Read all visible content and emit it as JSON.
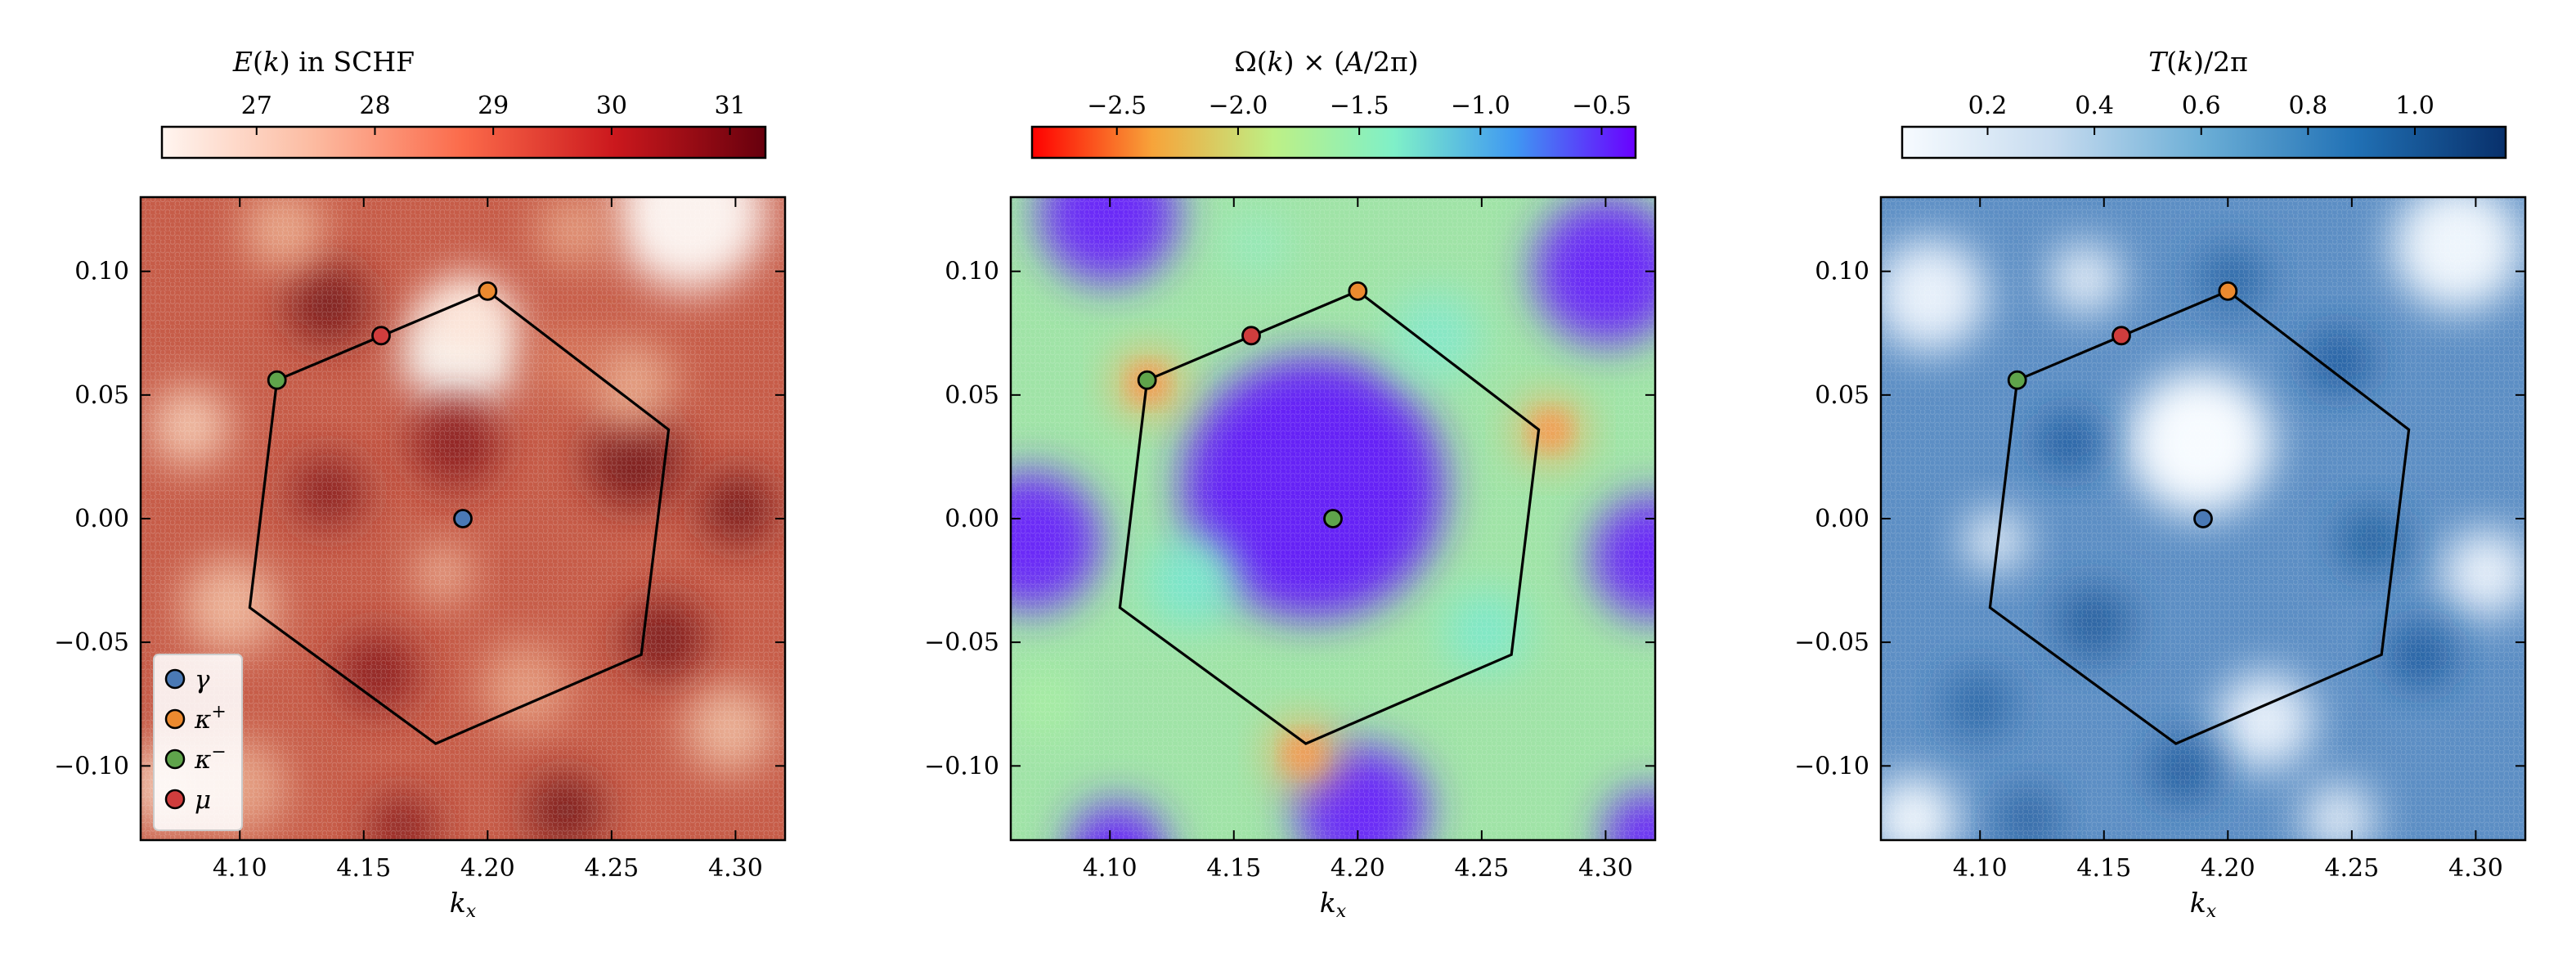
{
  "chart_data": [
    {
      "type": "heatmap",
      "title": "E(k) in SCHF",
      "colormap": "Reds",
      "colorbar_ticks": [
        27,
        28,
        29,
        30,
        31
      ],
      "colorbar_range": [
        26.2,
        31.3
      ],
      "xlabel": "k_x",
      "xlim": [
        4.06,
        4.32
      ],
      "ylim": [
        -0.13,
        0.13
      ],
      "xticks": [
        4.1,
        4.15,
        4.2,
        4.25,
        4.3
      ],
      "yticks": [
        -0.1,
        -0.05,
        0.0,
        0.05,
        0.1
      ],
      "xtick_labels": [
        "4.10",
        "4.15",
        "4.20",
        "4.25",
        "4.30"
      ],
      "ytick_labels": [
        "−0.10",
        "−0.05",
        "0.00",
        "0.05",
        "0.10"
      ],
      "legend": true
    },
    {
      "type": "heatmap",
      "title": "Ω(k) × (A/2π)",
      "colormap": "rainbow_r",
      "colorbar_ticks": [
        -2.5,
        -2.0,
        -1.5,
        -1.0,
        -0.5
      ],
      "colorbar_tick_labels": [
        "−2.5",
        "−2.0",
        "−1.5",
        "−1.0",
        "−0.5"
      ],
      "colorbar_range": [
        -2.85,
        -0.36
      ],
      "xlabel": "k_x",
      "xlim": [
        4.06,
        4.32
      ],
      "ylim": [
        -0.13,
        0.13
      ],
      "xticks": [
        4.1,
        4.15,
        4.2,
        4.25,
        4.3
      ],
      "yticks": [
        -0.1,
        -0.05,
        0.0,
        0.05,
        0.1
      ],
      "xtick_labels": [
        "4.10",
        "4.15",
        "4.20",
        "4.25",
        "4.30"
      ],
      "ytick_labels": [
        "−0.10",
        "−0.05",
        "0.00",
        "0.05",
        "0.10"
      ],
      "legend": false
    },
    {
      "type": "heatmap",
      "title": "T(k)/2π",
      "colormap": "Blues",
      "colorbar_ticks": [
        0.2,
        0.4,
        0.6,
        0.8,
        1.0
      ],
      "colorbar_tick_labels": [
        "0.2",
        "0.4",
        "0.6",
        "0.8",
        "1.0"
      ],
      "colorbar_range": [
        0.04,
        1.17
      ],
      "xlabel": "k_x",
      "xlim": [
        4.06,
        4.32
      ],
      "ylim": [
        -0.13,
        0.13
      ],
      "xticks": [
        4.1,
        4.15,
        4.2,
        4.25,
        4.3
      ],
      "yticks": [
        -0.1,
        -0.05,
        0.0,
        0.05,
        0.1
      ],
      "xtick_labels": [
        "4.10",
        "4.15",
        "4.20",
        "4.25",
        "4.30"
      ],
      "ytick_labels": [
        "−0.10",
        "−0.05",
        "0.00",
        "0.05",
        "0.10"
      ],
      "legend": false
    }
  ],
  "hexagon": [
    [
      4.179,
      -0.091
    ],
    [
      4.262,
      -0.055
    ],
    [
      4.273,
      0.036
    ],
    [
      4.2,
      0.092
    ],
    [
      4.115,
      0.056
    ],
    [
      4.104,
      -0.036
    ]
  ],
  "points": [
    {
      "name": "γ",
      "x": 4.19,
      "y": 0.0,
      "color": "#4a79b5",
      "panel_colors": [
        "#4a79b5",
        "#5fa44b",
        "#4a79b5"
      ]
    },
    {
      "name": "κ⁺",
      "x": 4.2,
      "y": 0.092,
      "color": "#ec8a2f"
    },
    {
      "name": "κ⁻",
      "x": 4.115,
      "y": 0.056,
      "color": "#5fa44b"
    },
    {
      "name": "μ",
      "x": 4.157,
      "y": 0.074,
      "color": "#cf3d3d"
    }
  ],
  "legend_labels": {
    "gamma": "γ",
    "kappa_plus_base": "κ",
    "kappa_plus_sup": "+",
    "kappa_minus_base": "κ",
    "kappa_minus_sup": "−",
    "mu": "μ"
  },
  "colors": {
    "gamma": "#4a79b5",
    "kappa_plus": "#ec8a2f",
    "kappa_minus": "#5fa44b",
    "mu": "#cf3d3d",
    "hexagon": "#000000"
  }
}
